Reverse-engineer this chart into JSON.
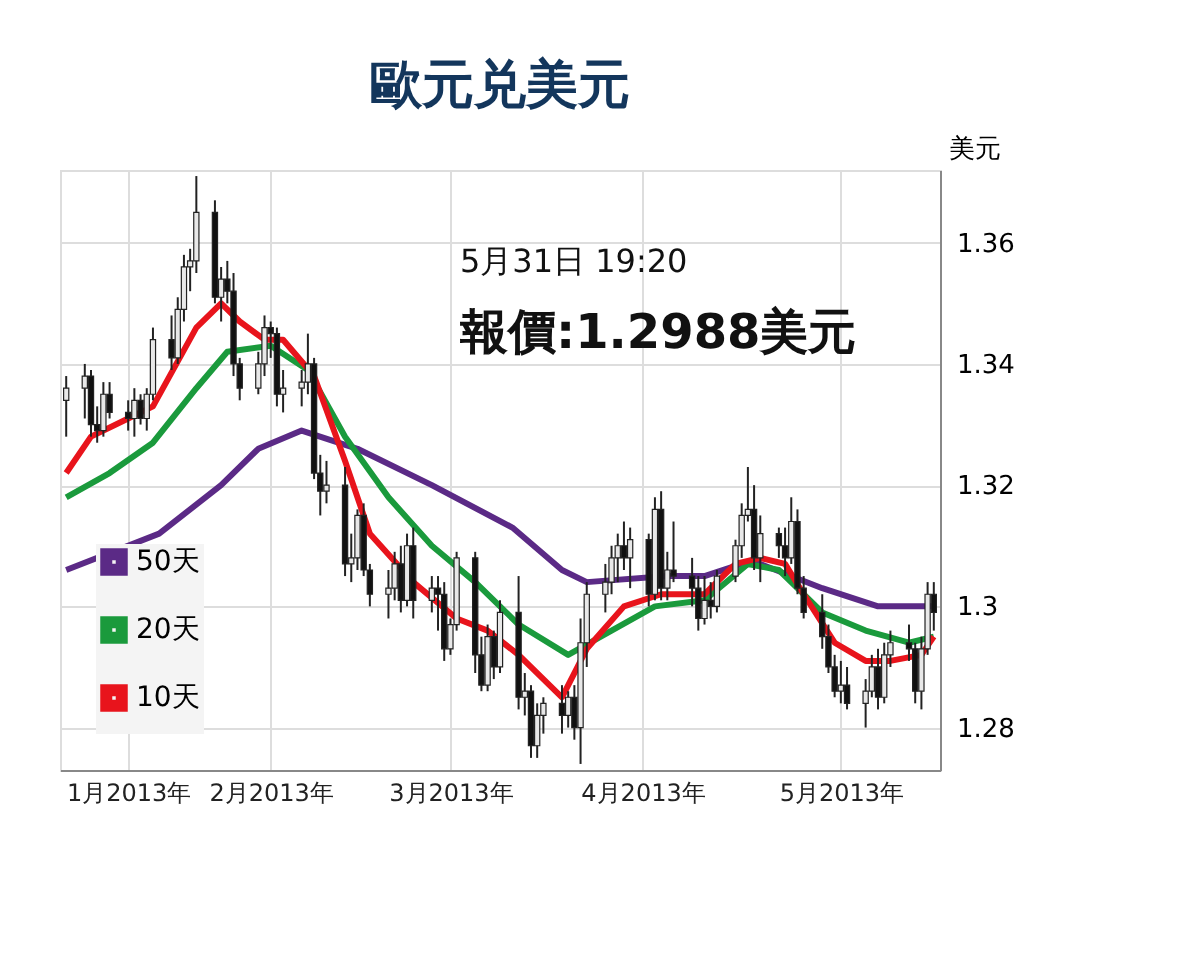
{
  "chart_data": {
    "type": "candlestick",
    "title": "歐元兑美元",
    "ylabel": "美元",
    "annotations": [
      "5月31日 19:20",
      "報價:1.2988美元"
    ],
    "x": [
      "2013-01-11",
      "2013-01-14",
      "2013-01-15",
      "2013-01-16",
      "2013-01-17",
      "2013-01-18",
      "2013-01-21",
      "2013-01-22",
      "2013-01-23",
      "2013-01-24",
      "2013-01-25",
      "2013-01-28",
      "2013-01-29",
      "2013-01-30",
      "2013-01-31",
      "2013-02-01",
      "2013-02-04",
      "2013-02-05",
      "2013-02-06",
      "2013-02-07",
      "2013-02-08",
      "2013-02-11",
      "2013-02-12",
      "2013-02-13",
      "2013-02-14",
      "2013-02-15",
      "2013-02-18",
      "2013-02-19",
      "2013-02-20",
      "2013-02-21",
      "2013-02-22",
      "2013-02-25",
      "2013-02-26",
      "2013-02-27",
      "2013-02-28",
      "2013-03-01",
      "2013-03-04",
      "2013-03-05",
      "2013-03-06",
      "2013-03-07",
      "2013-03-08",
      "2013-03-11",
      "2013-03-12",
      "2013-03-13",
      "2013-03-14",
      "2013-03-15",
      "2013-03-18",
      "2013-03-19",
      "2013-03-20",
      "2013-03-21",
      "2013-03-22",
      "2013-03-25",
      "2013-03-26",
      "2013-03-27",
      "2013-03-28",
      "2013-03-29",
      "2013-04-01",
      "2013-04-02",
      "2013-04-03",
      "2013-04-04",
      "2013-04-05",
      "2013-04-08",
      "2013-04-09",
      "2013-04-10",
      "2013-04-11",
      "2013-04-12",
      "2013-04-15",
      "2013-04-16",
      "2013-04-17",
      "2013-04-18",
      "2013-04-19",
      "2013-04-22",
      "2013-04-23",
      "2013-04-24",
      "2013-04-25",
      "2013-04-26",
      "2013-04-29",
      "2013-04-30",
      "2013-05-01",
      "2013-05-02",
      "2013-05-03",
      "2013-05-06",
      "2013-05-07",
      "2013-05-08",
      "2013-05-09",
      "2013-05-10",
      "2013-05-13",
      "2013-05-14",
      "2013-05-15",
      "2013-05-16",
      "2013-05-17",
      "2013-05-20",
      "2013-05-21",
      "2013-05-22",
      "2013-05-23",
      "2013-05-24",
      "2013-05-27",
      "2013-05-28",
      "2013-05-29",
      "2013-05-30",
      "2013-05-31"
    ],
    "ohlc": [
      [
        1.334,
        1.338,
        1.328,
        1.336
      ],
      [
        1.336,
        1.34,
        1.331,
        1.338
      ],
      [
        1.338,
        1.339,
        1.328,
        1.33
      ],
      [
        1.33,
        1.333,
        1.327,
        1.329
      ],
      [
        1.329,
        1.337,
        1.328,
        1.335
      ],
      [
        1.335,
        1.337,
        1.331,
        1.332
      ],
      [
        1.332,
        1.334,
        1.329,
        1.331
      ],
      [
        1.331,
        1.336,
        1.328,
        1.334
      ],
      [
        1.334,
        1.335,
        1.33,
        1.331
      ],
      [
        1.331,
        1.336,
        1.329,
        1.335
      ],
      [
        1.335,
        1.346,
        1.334,
        1.344
      ],
      [
        1.344,
        1.348,
        1.339,
        1.341
      ],
      [
        1.341,
        1.351,
        1.34,
        1.349
      ],
      [
        1.349,
        1.358,
        1.347,
        1.356
      ],
      [
        1.356,
        1.359,
        1.352,
        1.357
      ],
      [
        1.357,
        1.371,
        1.355,
        1.365
      ],
      [
        1.365,
        1.367,
        1.35,
        1.351
      ],
      [
        1.351,
        1.356,
        1.347,
        1.354
      ],
      [
        1.354,
        1.357,
        1.35,
        1.352
      ],
      [
        1.352,
        1.355,
        1.338,
        1.34
      ],
      [
        1.34,
        1.341,
        1.334,
        1.336
      ],
      [
        1.336,
        1.342,
        1.335,
        1.34
      ],
      [
        1.34,
        1.348,
        1.338,
        1.346
      ],
      [
        1.346,
        1.347,
        1.341,
        1.345
      ],
      [
        1.345,
        1.346,
        1.333,
        1.335
      ],
      [
        1.335,
        1.339,
        1.332,
        1.336
      ],
      [
        1.336,
        1.339,
        1.333,
        1.337
      ],
      [
        1.337,
        1.345,
        1.335,
        1.34
      ],
      [
        1.34,
        1.341,
        1.321,
        1.322
      ],
      [
        1.322,
        1.325,
        1.315,
        1.319
      ],
      [
        1.319,
        1.324,
        1.317,
        1.32
      ],
      [
        1.32,
        1.323,
        1.305,
        1.307
      ],
      [
        1.307,
        1.312,
        1.304,
        1.308
      ],
      [
        1.308,
        1.316,
        1.306,
        1.315
      ],
      [
        1.315,
        1.317,
        1.305,
        1.306
      ],
      [
        1.306,
        1.307,
        1.3,
        1.302
      ],
      [
        1.302,
        1.306,
        1.298,
        1.303
      ],
      [
        1.303,
        1.309,
        1.301,
        1.307
      ],
      [
        1.307,
        1.31,
        1.299,
        1.301
      ],
      [
        1.301,
        1.312,
        1.3,
        1.31
      ],
      [
        1.31,
        1.313,
        1.298,
        1.301
      ],
      [
        1.301,
        1.305,
        1.299,
        1.303
      ],
      [
        1.303,
        1.305,
        1.296,
        1.302
      ],
      [
        1.302,
        1.304,
        1.291,
        1.293
      ],
      [
        1.293,
        1.298,
        1.292,
        1.297
      ],
      [
        1.297,
        1.309,
        1.296,
        1.308
      ],
      [
        1.308,
        1.309,
        1.289,
        1.292
      ],
      [
        1.292,
        1.295,
        1.286,
        1.287
      ],
      [
        1.287,
        1.297,
        1.286,
        1.295
      ],
      [
        1.295,
        1.296,
        1.288,
        1.29
      ],
      [
        1.29,
        1.301,
        1.289,
        1.299
      ],
      [
        1.299,
        1.305,
        1.283,
        1.285
      ],
      [
        1.285,
        1.289,
        1.282,
        1.286
      ],
      [
        1.286,
        1.287,
        1.275,
        1.277
      ],
      [
        1.277,
        1.284,
        1.275,
        1.282
      ],
      [
        1.282,
        1.285,
        1.279,
        1.284
      ],
      [
        1.284,
        1.287,
        1.279,
        1.282
      ],
      [
        1.282,
        1.286,
        1.28,
        1.285
      ],
      [
        1.285,
        1.287,
        1.278,
        1.28
      ],
      [
        1.28,
        1.298,
        1.274,
        1.294
      ],
      [
        1.294,
        1.304,
        1.29,
        1.302
      ],
      [
        1.302,
        1.307,
        1.299,
        1.304
      ],
      [
        1.304,
        1.31,
        1.302,
        1.308
      ],
      [
        1.308,
        1.312,
        1.304,
        1.31
      ],
      [
        1.31,
        1.314,
        1.306,
        1.308
      ],
      [
        1.308,
        1.313,
        1.303,
        1.311
      ],
      [
        1.311,
        1.312,
        1.3,
        1.302
      ],
      [
        1.302,
        1.318,
        1.301,
        1.316
      ],
      [
        1.316,
        1.319,
        1.301,
        1.303
      ],
      [
        1.303,
        1.309,
        1.301,
        1.306
      ],
      [
        1.306,
        1.314,
        1.304,
        1.305
      ],
      [
        1.305,
        1.308,
        1.3,
        1.303
      ],
      [
        1.303,
        1.305,
        1.296,
        1.298
      ],
      [
        1.298,
        1.305,
        1.297,
        1.301
      ],
      [
        1.301,
        1.304,
        1.298,
        1.3
      ],
      [
        1.3,
        1.306,
        1.299,
        1.305
      ],
      [
        1.305,
        1.311,
        1.304,
        1.31
      ],
      [
        1.31,
        1.317,
        1.308,
        1.315
      ],
      [
        1.315,
        1.323,
        1.314,
        1.316
      ],
      [
        1.316,
        1.32,
        1.306,
        1.308
      ],
      [
        1.308,
        1.315,
        1.304,
        1.312
      ],
      [
        1.312,
        1.313,
        1.308,
        1.31
      ],
      [
        1.31,
        1.313,
        1.305,
        1.308
      ],
      [
        1.308,
        1.318,
        1.307,
        1.314
      ],
      [
        1.314,
        1.316,
        1.302,
        1.303
      ],
      [
        1.303,
        1.305,
        1.298,
        1.299
      ],
      [
        1.299,
        1.302,
        1.293,
        1.295
      ],
      [
        1.295,
        1.297,
        1.289,
        1.29
      ],
      [
        1.29,
        1.292,
        1.285,
        1.286
      ],
      [
        1.286,
        1.291,
        1.284,
        1.287
      ],
      [
        1.287,
        1.29,
        1.283,
        1.284
      ],
      [
        1.284,
        1.288,
        1.28,
        1.286
      ],
      [
        1.286,
        1.292,
        1.285,
        1.29
      ],
      [
        1.29,
        1.293,
        1.283,
        1.285
      ],
      [
        1.285,
        1.294,
        1.284,
        1.292
      ],
      [
        1.292,
        1.296,
        1.29,
        1.294
      ],
      [
        1.294,
        1.297,
        1.291,
        1.293
      ],
      [
        1.293,
        1.294,
        1.284,
        1.286
      ],
      [
        1.286,
        1.295,
        1.283,
        1.293
      ],
      [
        1.293,
        1.304,
        1.292,
        1.302
      ],
      [
        1.302,
        1.304,
        1.296,
        1.299
      ]
    ],
    "series": [
      {
        "name": "50天",
        "type": "line",
        "color": "#5b2a86",
        "x": [
          "2013-01-11",
          "2013-01-26",
          "2013-02-05",
          "2013-02-11",
          "2013-02-18",
          "2013-02-27",
          "2013-03-11",
          "2013-03-24",
          "2013-04-01",
          "2013-04-05",
          "2013-04-18",
          "2013-04-24",
          "2013-04-30",
          "2013-05-03",
          "2013-05-13",
          "2013-05-22",
          "2013-05-31"
        ],
        "values": [
          1.306,
          1.312,
          1.32,
          1.326,
          1.329,
          1.326,
          1.32,
          1.313,
          1.306,
          1.304,
          1.305,
          1.305,
          1.307,
          1.307,
          1.303,
          1.3,
          1.3
        ]
      },
      {
        "name": "20天",
        "type": "line",
        "color": "#1a9a3c",
        "x": [
          "2013-01-11",
          "2013-01-18",
          "2013-01-25",
          "2013-02-01",
          "2013-02-06",
          "2013-02-13",
          "2013-02-19",
          "2013-02-25",
          "2013-03-04",
          "2013-03-11",
          "2013-03-18",
          "2013-03-25",
          "2013-04-02",
          "2013-04-09",
          "2013-04-16",
          "2013-04-24",
          "2013-05-01",
          "2013-05-06",
          "2013-05-13",
          "2013-05-20",
          "2013-05-27",
          "2013-05-31"
        ],
        "values": [
          1.318,
          1.322,
          1.327,
          1.336,
          1.342,
          1.343,
          1.339,
          1.328,
          1.318,
          1.31,
          1.304,
          1.297,
          1.292,
          1.296,
          1.3,
          1.301,
          1.307,
          1.306,
          1.299,
          1.296,
          1.294,
          1.295
        ]
      },
      {
        "name": "10天",
        "type": "line",
        "color": "#e8141c",
        "x": [
          "2013-01-11",
          "2013-01-15",
          "2013-01-21",
          "2013-01-25",
          "2013-02-01",
          "2013-02-05",
          "2013-02-08",
          "2013-02-12",
          "2013-02-15",
          "2013-02-20",
          "2013-02-25",
          "2013-03-01",
          "2013-03-08",
          "2013-03-15",
          "2013-03-20",
          "2013-03-25",
          "2013-04-01",
          "2013-04-05",
          "2013-04-11",
          "2013-04-17",
          "2013-04-24",
          "2013-04-29",
          "2013-05-03",
          "2013-05-07",
          "2013-05-10",
          "2013-05-15",
          "2013-05-20",
          "2013-05-24",
          "2013-05-29",
          "2013-05-31"
        ],
        "values": [
          1.322,
          1.328,
          1.331,
          1.333,
          1.346,
          1.35,
          1.347,
          1.344,
          1.344,
          1.338,
          1.324,
          1.312,
          1.304,
          1.298,
          1.296,
          1.292,
          1.285,
          1.293,
          1.3,
          1.302,
          1.302,
          1.307,
          1.308,
          1.307,
          1.302,
          1.294,
          1.291,
          1.291,
          1.292,
          1.295
        ]
      }
    ],
    "xlim": [
      "2013-01-10",
      "2013-06-01"
    ],
    "xticks": [
      {
        "value": "2013-01-21",
        "label": "1月2013年"
      },
      {
        "value": "2013-02-13",
        "label": "2月2013年"
      },
      {
        "value": "2013-03-14",
        "label": "3月2013年"
      },
      {
        "value": "2013-04-14",
        "label": "4月2013年"
      },
      {
        "value": "2013-05-16",
        "label": "5月2013年"
      }
    ],
    "ylim": [
      1.273,
      1.372
    ],
    "yticks": [
      1.28,
      {
        "value": 1.3,
        "label": "1.3"
      },
      1.32,
      1.34,
      1.36
    ],
    "grid": true,
    "legend": "bottom left",
    "line_style": "solid",
    "marker": "none"
  }
}
